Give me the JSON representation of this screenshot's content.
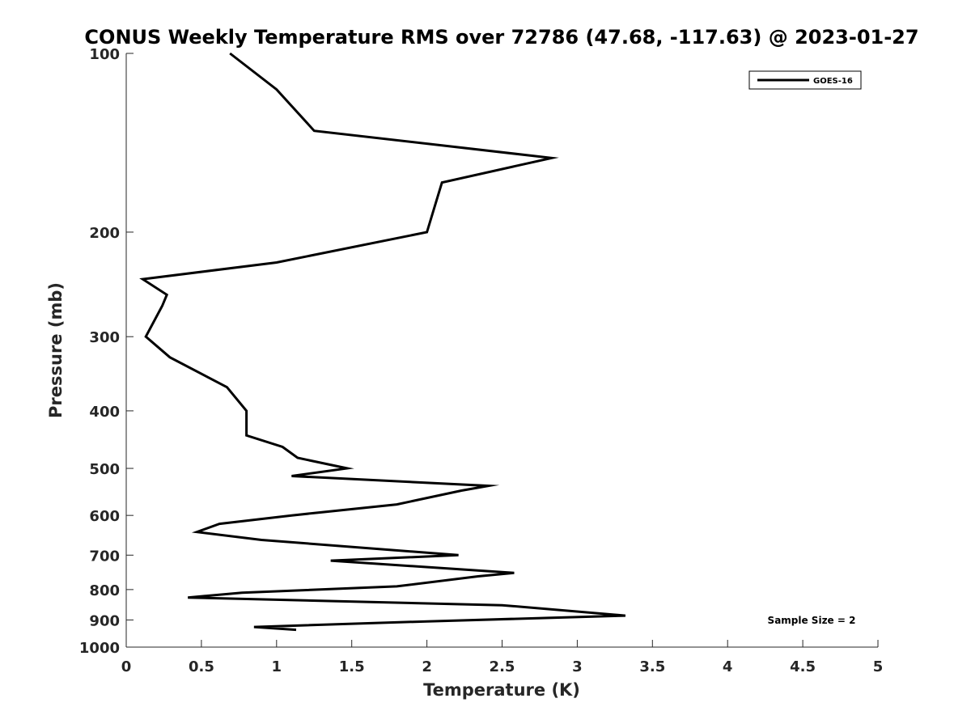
{
  "chart_data": {
    "type": "line",
    "title": "CONUS Weekly Temperature RMS over 72786 (47.68, -117.63) @ 2023-01-27",
    "xlabel": "Temperature (K)",
    "ylabel": "Pressure (mb)",
    "xlim": [
      0,
      5
    ],
    "ylim": [
      1000,
      100
    ],
    "y_scale": "log",
    "y_reversed": true,
    "x_ticks": [
      "0",
      "0.5",
      "1",
      "1.5",
      "2",
      "2.5",
      "3",
      "3.5",
      "4",
      "4.5",
      "5"
    ],
    "y_ticks": [
      "100",
      "200",
      "300",
      "400",
      "500",
      "600",
      "700",
      "800",
      "900",
      "1000"
    ],
    "grid": false,
    "legend_position": "top-right",
    "annotation": "Sample Size = 2",
    "series": [
      {
        "name": "GOES-16",
        "color": "#000000",
        "points": [
          [
            0.69,
            100
          ],
          [
            1.0,
            115
          ],
          [
            1.25,
            135
          ],
          [
            2.83,
            150
          ],
          [
            2.1,
            165
          ],
          [
            2.0,
            200
          ],
          [
            1.0,
            225
          ],
          [
            0.11,
            240
          ],
          [
            0.27,
            255
          ],
          [
            0.24,
            266
          ],
          [
            0.13,
            300
          ],
          [
            0.29,
            325
          ],
          [
            0.67,
            365
          ],
          [
            0.8,
            400
          ],
          [
            0.8,
            440
          ],
          [
            1.04,
            460
          ],
          [
            1.14,
            480
          ],
          [
            1.47,
            500
          ],
          [
            1.1,
            515
          ],
          [
            2.41,
            535
          ],
          [
            2.23,
            545
          ],
          [
            1.8,
            575
          ],
          [
            1.1,
            600
          ],
          [
            0.62,
            620
          ],
          [
            0.47,
            640
          ],
          [
            0.9,
            660
          ],
          [
            2.21,
            700
          ],
          [
            1.36,
            715
          ],
          [
            2.58,
            750
          ],
          [
            2.34,
            760
          ],
          [
            1.8,
            790
          ],
          [
            0.77,
            810
          ],
          [
            0.41,
            825
          ],
          [
            2.5,
            850
          ],
          [
            3.32,
            885
          ],
          [
            2.0,
            905
          ],
          [
            0.85,
            925
          ],
          [
            1.13,
            935
          ]
        ]
      }
    ]
  }
}
